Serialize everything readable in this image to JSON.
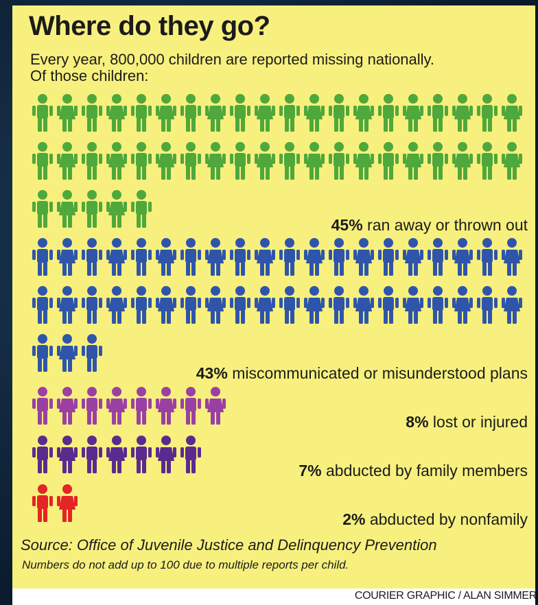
{
  "header": {
    "title": "Where do they go?",
    "subtitle_line1": "Every year, 800,000 children are reported missing nationally.",
    "subtitle_line2": "Of those children:"
  },
  "footer": {
    "source": "Source: Office of Juvenile Justice and Delinquency Prevention",
    "note": "Numbers do not add up to 100 due to multiple reports per child.",
    "credit": "COURIER GRAPHIC / ALAN SIMMER"
  },
  "chart_data": {
    "type": "pictograph",
    "unit": "one figure = 1%",
    "categories": [
      {
        "percent_label": "45%",
        "text": "ran away or thrown out",
        "value": 45,
        "color": "#4ea83c"
      },
      {
        "percent_label": "43%",
        "text": "miscommunicated or misunderstood plans",
        "value": 43,
        "color": "#2f55ab"
      },
      {
        "percent_label": "8%",
        "text": "lost or injured",
        "value": 8,
        "color": "#9b40a3"
      },
      {
        "percent_label": "7%",
        "text": "abducted by family members",
        "value": 7,
        "color": "#5b2a8f"
      },
      {
        "percent_label": "2%",
        "text": "abducted by nonfamily",
        "value": 2,
        "color": "#e42425"
      }
    ]
  }
}
